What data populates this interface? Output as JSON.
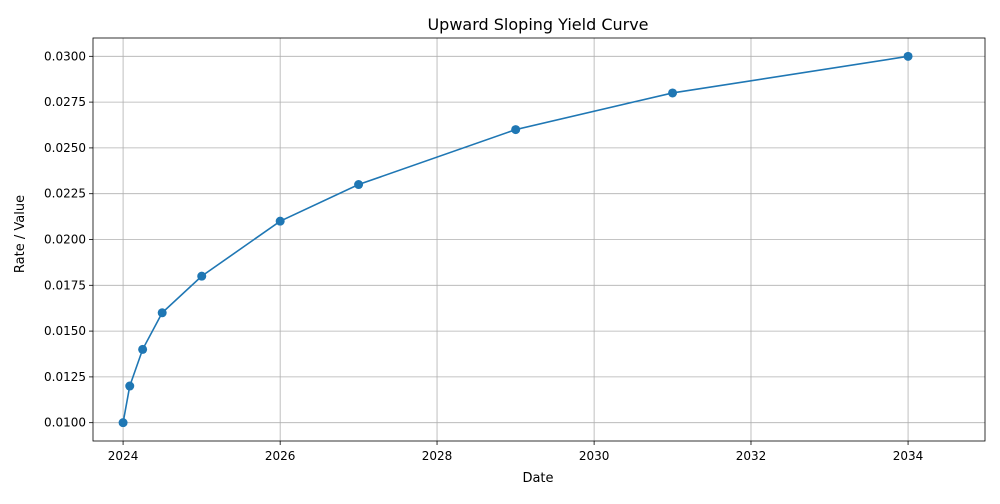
{
  "chart_data": {
    "type": "line",
    "title": "Upward Sloping Yield Curve",
    "xlabel": "Date",
    "ylabel": "Rate / Value",
    "x_is_date": true,
    "xlim": [
      "2023-08-14",
      "2034-12-25"
    ],
    "ylim": [
      0.009,
      0.031
    ],
    "x_ticks": [
      {
        "value": "2024-01-01",
        "label": "2024"
      },
      {
        "value": "2026-01-01",
        "label": "2026"
      },
      {
        "value": "2028-01-01",
        "label": "2028"
      },
      {
        "value": "2030-01-01",
        "label": "2030"
      },
      {
        "value": "2032-01-01",
        "label": "2032"
      },
      {
        "value": "2034-01-01",
        "label": "2034"
      }
    ],
    "y_ticks": [
      {
        "value": 0.01,
        "label": "0.0100"
      },
      {
        "value": 0.0125,
        "label": "0.0125"
      },
      {
        "value": 0.015,
        "label": "0.0150"
      },
      {
        "value": 0.0175,
        "label": "0.0175"
      },
      {
        "value": 0.02,
        "label": "0.0200"
      },
      {
        "value": 0.0225,
        "label": "0.0225"
      },
      {
        "value": 0.025,
        "label": "0.0250"
      },
      {
        "value": 0.0275,
        "label": "0.0275"
      },
      {
        "value": 0.03,
        "label": "0.0300"
      }
    ],
    "grid": true,
    "legend": "none",
    "series": [
      {
        "color": "#1f77b4",
        "marker": "circle",
        "x": [
          "2024-01-01",
          "2024-02-01",
          "2024-04-01",
          "2024-07-01",
          "2025-01-01",
          "2026-01-01",
          "2027-01-01",
          "2029-01-01",
          "2031-01-01",
          "2034-01-01"
        ],
        "y": [
          0.01,
          0.012,
          0.014,
          0.016,
          0.018,
          0.021,
          0.023,
          0.026,
          0.028,
          0.03
        ]
      }
    ]
  }
}
